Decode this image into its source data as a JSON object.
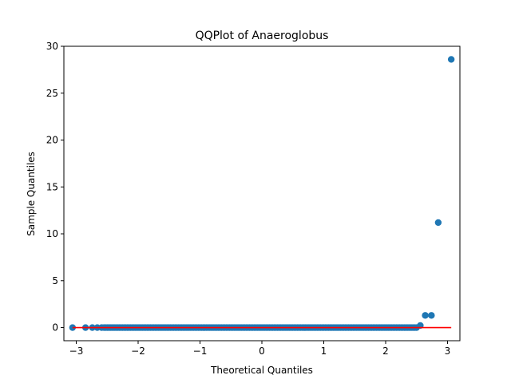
{
  "chart_data": {
    "type": "scatter",
    "title": "QQPlot of Anaeroglobus",
    "xlabel": "Theoretical Quantiles",
    "ylabel": "Sample Quantiles",
    "xlim": [
      -3.2,
      3.2
    ],
    "ylim": [
      -1.4,
      30
    ],
    "x_ticks": [
      -3,
      -2,
      -1,
      0,
      1,
      2,
      3
    ],
    "x_tick_labels": [
      "−3",
      "−2",
      "−1",
      "0",
      "1",
      "2",
      "3"
    ],
    "y_ticks": [
      0,
      5,
      10,
      15,
      20,
      25,
      30
    ],
    "y_tick_labels": [
      "0",
      "5",
      "10",
      "15",
      "20",
      "25",
      "30"
    ],
    "grid": false,
    "series": [
      {
        "kind": "scatter",
        "color": "#1f77b4",
        "points": [
          {
            "x": -3.06,
            "y": 0.0
          },
          {
            "x": -2.85,
            "y": 0.0
          },
          {
            "x": -2.74,
            "y": 0.0
          },
          {
            "x": -2.66,
            "y": 0.0
          },
          {
            "x": -2.59,
            "y": 0.0
          },
          {
            "x": 2.56,
            "y": 0.22
          },
          {
            "x": 2.64,
            "y": 1.3
          },
          {
            "x": 2.74,
            "y": 1.3
          },
          {
            "x": 2.85,
            "y": 11.2
          },
          {
            "x": 3.06,
            "y": 28.6
          }
        ],
        "dense_run": {
          "x_start": -2.55,
          "x_end": 2.5,
          "step": 0.025,
          "y": 0.0
        }
      },
      {
        "kind": "reference-line",
        "color": "#ff0000",
        "x": [
          -3.06,
          3.06
        ],
        "y": [
          0.0,
          0.0
        ]
      }
    ]
  }
}
